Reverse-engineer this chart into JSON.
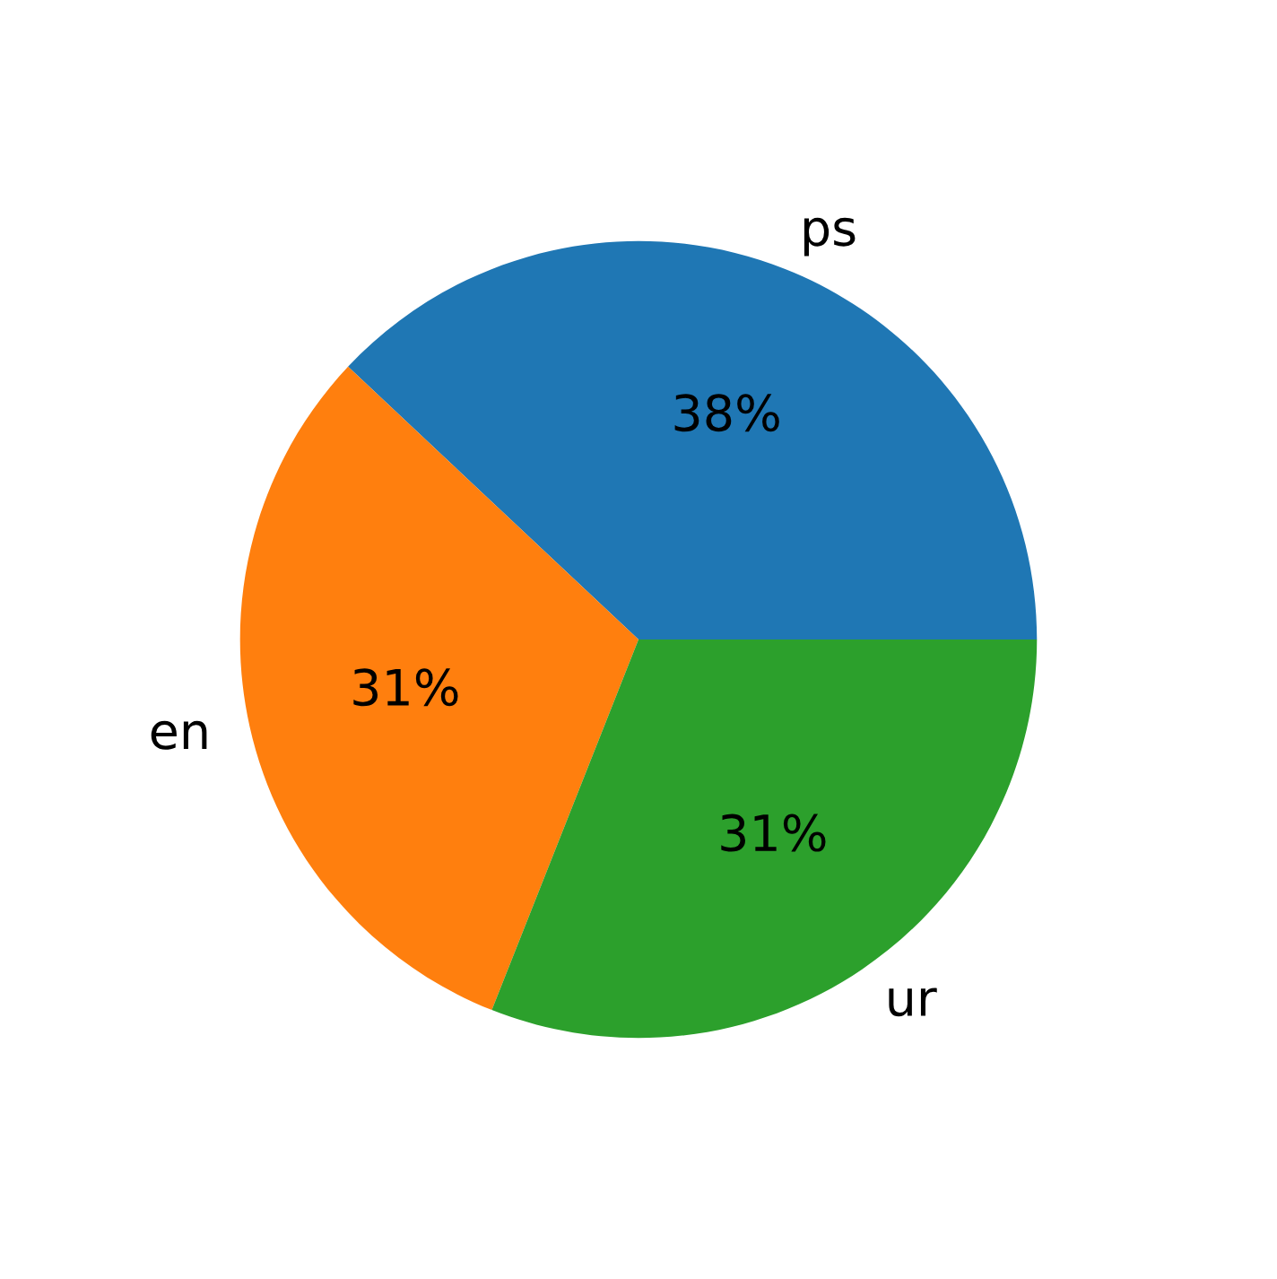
{
  "chart_data": {
    "type": "pie",
    "categories": [
      "ps",
      "en",
      "ur"
    ],
    "values": [
      38,
      31,
      31
    ],
    "colors": [
      "#1f77b4",
      "#ff7f0e",
      "#2ca02c"
    ],
    "value_labels": [
      "38%",
      "31%",
      "31%"
    ]
  }
}
